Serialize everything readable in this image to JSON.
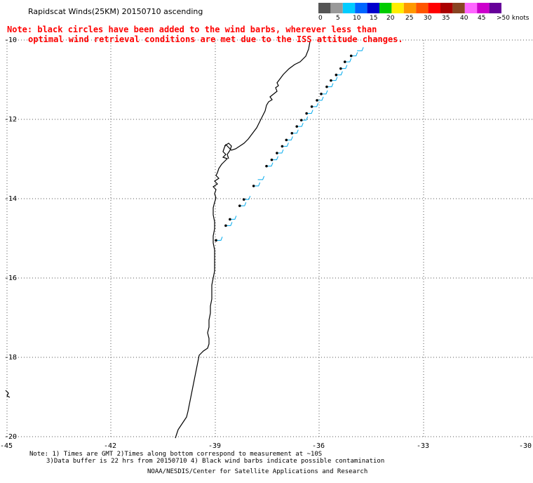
{
  "title": "Rapidscat Winds(25KM) 20150710 ascending",
  "note_line1": "Note: black circles have been added to the wind barbs, wherever less than",
  "note_line2": "optimal wind retrieval conditions are met due to the ISS attitude changes.",
  "colorbar": {
    "labels": [
      "0",
      "5",
      "10",
      "15",
      "20",
      "25",
      "30",
      "35",
      "40",
      "45",
      ">50 knots"
    ],
    "colors": [
      "#555555",
      "#999999",
      "#00ccff",
      "#0066ff",
      "#0000cc",
      "#00cc00",
      "#ffee00",
      "#ff9900",
      "#ff5500",
      "#ff0000",
      "#aa0000",
      "#884422",
      "#ff66ff",
      "#cc00cc",
      "#660099"
    ]
  },
  "lat_labels": [
    "-10",
    "-12",
    "-14",
    "-16",
    "-18",
    "-20"
  ],
  "lon_labels": [
    "-45",
    "-42",
    "-39",
    "-36",
    "-33",
    "-30"
  ],
  "footer": {
    "line1": "Note: 1) Times are GMT 2)Times along bottom correspond to measurement at ~10S",
    "line2": "3)Data buffer is 22 hrs from 20150710 4) Black wind barbs indicate possible contamination",
    "line3": "NOAA/NESDIS/Center for Satellite Applications and Research"
  },
  "wind_barbs": [
    {
      "lat": -10.27,
      "lon": -34.95,
      "flag": false
    },
    {
      "lat": -10.4,
      "lon": -35.12,
      "flag": true
    },
    {
      "lat": -10.55,
      "lon": -35.3,
      "flag": true
    },
    {
      "lat": -10.72,
      "lon": -35.42,
      "flag": true
    },
    {
      "lat": -10.88,
      "lon": -35.55,
      "flag": true
    },
    {
      "lat": -11.02,
      "lon": -35.7,
      "flag": true
    },
    {
      "lat": -11.18,
      "lon": -35.82,
      "flag": true
    },
    {
      "lat": -11.36,
      "lon": -35.98,
      "flag": true
    },
    {
      "lat": -11.52,
      "lon": -36.1,
      "flag": true
    },
    {
      "lat": -11.68,
      "lon": -36.25,
      "flag": true
    },
    {
      "lat": -11.85,
      "lon": -36.4,
      "flag": true
    },
    {
      "lat": -12.02,
      "lon": -36.55,
      "flag": true
    },
    {
      "lat": -12.18,
      "lon": -36.68,
      "flag": true
    },
    {
      "lat": -12.35,
      "lon": -36.82,
      "flag": true
    },
    {
      "lat": -12.52,
      "lon": -36.98,
      "flag": true
    },
    {
      "lat": -12.68,
      "lon": -37.1,
      "flag": true
    },
    {
      "lat": -12.85,
      "lon": -37.25,
      "flag": true
    },
    {
      "lat": -13.02,
      "lon": -37.4,
      "flag": true
    },
    {
      "lat": -13.18,
      "lon": -37.55,
      "flag": true
    },
    {
      "lat": -13.52,
      "lon": -37.8,
      "flag": false
    },
    {
      "lat": -13.68,
      "lon": -37.92,
      "flag": true
    },
    {
      "lat": -14.02,
      "lon": -38.2,
      "flag": true
    },
    {
      "lat": -14.18,
      "lon": -38.32,
      "flag": true
    },
    {
      "lat": -14.52,
      "lon": -38.6,
      "flag": true
    },
    {
      "lat": -14.68,
      "lon": -38.72,
      "flag": true
    },
    {
      "lat": -15.05,
      "lon": -39.0,
      "flag": true
    }
  ]
}
